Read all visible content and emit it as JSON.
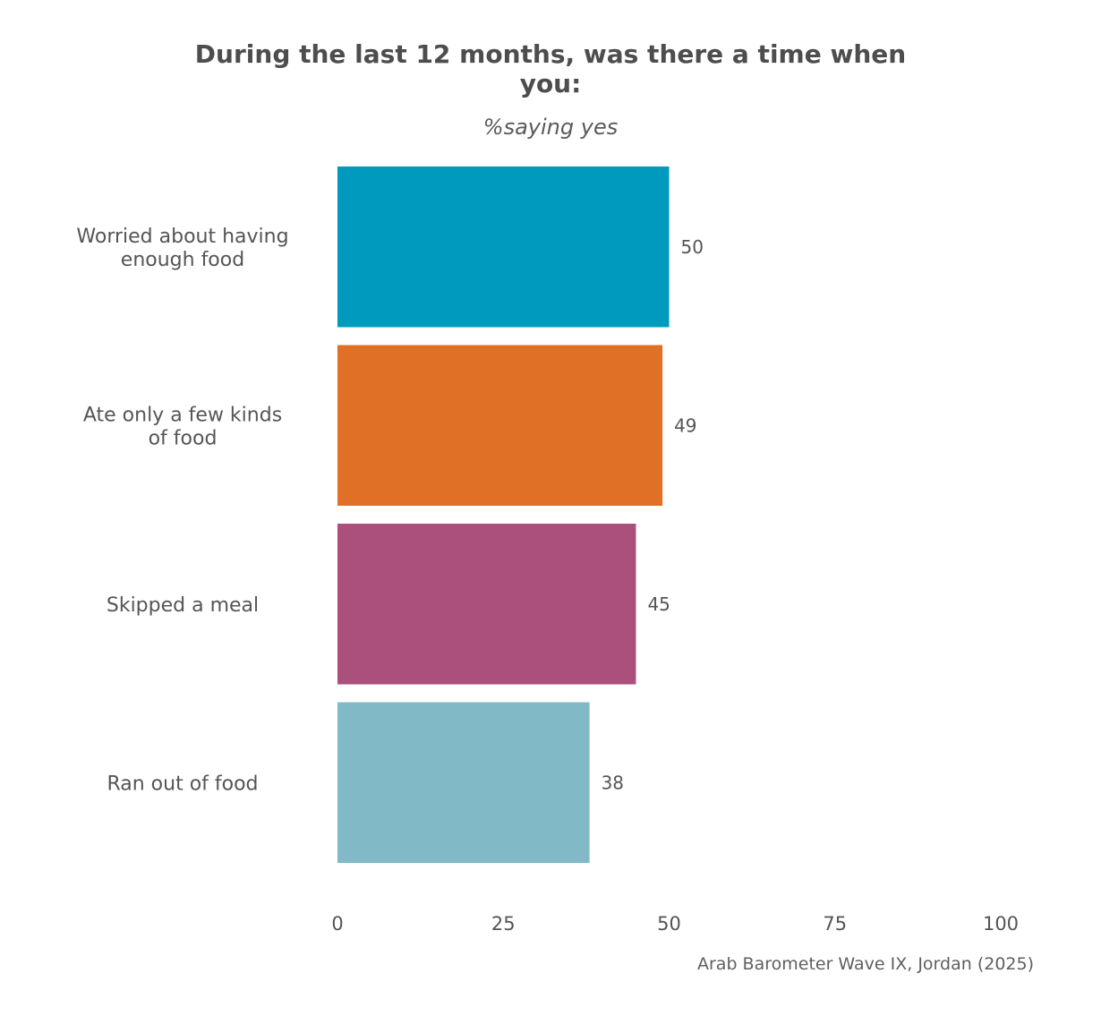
{
  "chart_data": {
    "type": "bar",
    "orientation": "horizontal",
    "title_lines": [
      "During the last 12 months, was there a time when",
      "you:"
    ],
    "subtitle": "%saying yes",
    "categories": [
      [
        "Worried about having",
        "enough food"
      ],
      [
        "Ate only a few kinds",
        "of food"
      ],
      [
        "Skipped a meal"
      ],
      [
        "Ran out of food"
      ]
    ],
    "values": [
      50,
      49,
      45,
      38
    ],
    "colors": [
      "#009abf",
      "#e07025",
      "#ab4f7d",
      "#81b9c6"
    ],
    "xlim": [
      0,
      100
    ],
    "xticks": [
      0,
      25,
      50,
      75,
      100
    ],
    "grid": false,
    "source": "Arab Barometer Wave IX, Jordan (2025)"
  }
}
